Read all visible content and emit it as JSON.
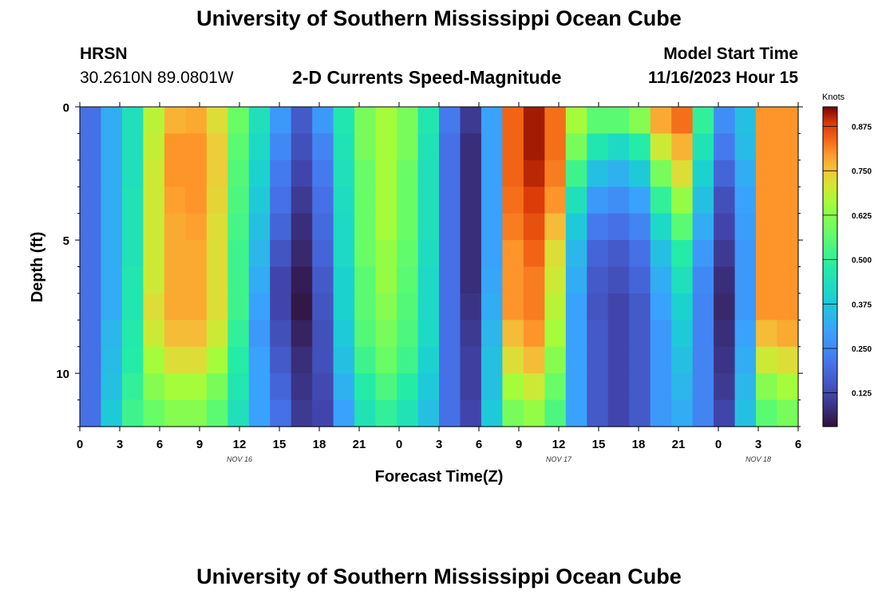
{
  "header": {
    "title": "University of Southern Mississippi Ocean Cube",
    "station": "HRSN",
    "coordinates": "30.2610N  89.0801W",
    "plot_title": "2-D Currents Speed-Magnitude",
    "model_label": "Model Start Time",
    "model_start": "11/16/2023 Hour 15"
  },
  "footer": {
    "title": "University of Southern Mississippi Ocean Cube"
  },
  "chart_data": {
    "type": "heatmap",
    "title": "2-D Currents Speed-Magnitude",
    "xlabel": "Forecast Time(Z)",
    "ylabel": "Depth (ft)",
    "x_tick_labels": [
      "0",
      "3",
      "6",
      "9",
      "12",
      "15",
      "18",
      "21",
      "0",
      "3",
      "6",
      "9",
      "12",
      "15",
      "18",
      "21",
      "0",
      "3",
      "6"
    ],
    "x_range_hours": [
      0,
      54
    ],
    "date_labels": [
      {
        "hour": 12,
        "label": "NOV 16"
      },
      {
        "hour": 36,
        "label": "NOV 17"
      },
      {
        "hour": 51,
        "label": "NOV 18"
      }
    ],
    "y_range_ft": [
      0,
      12
    ],
    "y_ticks": [
      0,
      5,
      10
    ],
    "colorbar": {
      "label": "Knots",
      "range": [
        0.03,
        0.93
      ],
      "ticks": [
        "0.875",
        "0.750",
        "0.625",
        "0.500",
        "0.375",
        "0.250",
        "0.125"
      ],
      "tick_values": [
        0.875,
        0.75,
        0.625,
        0.5,
        0.375,
        0.25,
        0.125
      ]
    },
    "depth_rows_ft": [
      0.5,
      1.5,
      2.5,
      3.5,
      4.5,
      5.5,
      6.5,
      7.5,
      8.5,
      9.5,
      10.5,
      11.5
    ],
    "speed_knots": [
      [
        0.2,
        0.32,
        0.44,
        0.68,
        0.77,
        0.78,
        0.72,
        0.58,
        0.44,
        0.28,
        0.16,
        0.28,
        0.46,
        0.6,
        0.66,
        0.6,
        0.46,
        0.22,
        0.1,
        0.3,
        0.84,
        0.91,
        0.83,
        0.66,
        0.56,
        0.56,
        0.62,
        0.78,
        0.83,
        0.5,
        0.26,
        0.36,
        0.8,
        0.8
      ],
      [
        0.2,
        0.32,
        0.44,
        0.69,
        0.8,
        0.8,
        0.74,
        0.56,
        0.42,
        0.25,
        0.14,
        0.24,
        0.45,
        0.6,
        0.66,
        0.6,
        0.45,
        0.2,
        0.08,
        0.3,
        0.84,
        0.91,
        0.83,
        0.6,
        0.46,
        0.42,
        0.48,
        0.7,
        0.77,
        0.45,
        0.22,
        0.35,
        0.8,
        0.8
      ],
      [
        0.2,
        0.32,
        0.44,
        0.7,
        0.8,
        0.8,
        0.74,
        0.55,
        0.4,
        0.22,
        0.12,
        0.22,
        0.44,
        0.58,
        0.66,
        0.58,
        0.44,
        0.2,
        0.08,
        0.3,
        0.84,
        0.9,
        0.82,
        0.52,
        0.36,
        0.33,
        0.38,
        0.6,
        0.72,
        0.4,
        0.18,
        0.32,
        0.8,
        0.8
      ],
      [
        0.2,
        0.32,
        0.45,
        0.7,
        0.79,
        0.8,
        0.73,
        0.54,
        0.38,
        0.2,
        0.1,
        0.2,
        0.43,
        0.58,
        0.66,
        0.58,
        0.44,
        0.2,
        0.08,
        0.3,
        0.83,
        0.88,
        0.8,
        0.44,
        0.28,
        0.26,
        0.3,
        0.5,
        0.64,
        0.36,
        0.14,
        0.3,
        0.8,
        0.8
      ],
      [
        0.2,
        0.32,
        0.45,
        0.7,
        0.78,
        0.79,
        0.72,
        0.53,
        0.36,
        0.18,
        0.08,
        0.19,
        0.42,
        0.58,
        0.66,
        0.58,
        0.44,
        0.2,
        0.08,
        0.3,
        0.82,
        0.86,
        0.76,
        0.38,
        0.22,
        0.2,
        0.24,
        0.42,
        0.56,
        0.32,
        0.12,
        0.29,
        0.8,
        0.8
      ],
      [
        0.2,
        0.32,
        0.45,
        0.7,
        0.78,
        0.78,
        0.72,
        0.52,
        0.34,
        0.15,
        0.07,
        0.18,
        0.42,
        0.58,
        0.64,
        0.57,
        0.43,
        0.2,
        0.08,
        0.3,
        0.8,
        0.84,
        0.72,
        0.34,
        0.18,
        0.16,
        0.2,
        0.36,
        0.48,
        0.28,
        0.1,
        0.28,
        0.8,
        0.8
      ],
      [
        0.2,
        0.32,
        0.46,
        0.7,
        0.78,
        0.78,
        0.72,
        0.52,
        0.32,
        0.12,
        0.05,
        0.16,
        0.4,
        0.56,
        0.64,
        0.56,
        0.42,
        0.2,
        0.08,
        0.31,
        0.8,
        0.82,
        0.7,
        0.32,
        0.16,
        0.14,
        0.18,
        0.32,
        0.44,
        0.25,
        0.08,
        0.28,
        0.8,
        0.8
      ],
      [
        0.2,
        0.32,
        0.46,
        0.72,
        0.78,
        0.78,
        0.72,
        0.52,
        0.3,
        0.12,
        0.04,
        0.15,
        0.4,
        0.56,
        0.62,
        0.55,
        0.42,
        0.2,
        0.09,
        0.32,
        0.8,
        0.82,
        0.68,
        0.3,
        0.15,
        0.12,
        0.16,
        0.3,
        0.4,
        0.24,
        0.07,
        0.28,
        0.8,
        0.8
      ],
      [
        0.2,
        0.34,
        0.47,
        0.7,
        0.76,
        0.76,
        0.7,
        0.5,
        0.28,
        0.14,
        0.06,
        0.14,
        0.38,
        0.55,
        0.6,
        0.54,
        0.42,
        0.2,
        0.1,
        0.34,
        0.76,
        0.8,
        0.66,
        0.3,
        0.16,
        0.12,
        0.16,
        0.28,
        0.38,
        0.24,
        0.08,
        0.3,
        0.76,
        0.78
      ],
      [
        0.2,
        0.35,
        0.48,
        0.66,
        0.72,
        0.72,
        0.66,
        0.48,
        0.3,
        0.16,
        0.08,
        0.14,
        0.36,
        0.52,
        0.58,
        0.52,
        0.4,
        0.2,
        0.11,
        0.36,
        0.72,
        0.76,
        0.62,
        0.3,
        0.16,
        0.12,
        0.16,
        0.28,
        0.36,
        0.24,
        0.09,
        0.32,
        0.7,
        0.72
      ],
      [
        0.2,
        0.36,
        0.5,
        0.62,
        0.66,
        0.66,
        0.6,
        0.46,
        0.3,
        0.18,
        0.09,
        0.13,
        0.33,
        0.48,
        0.54,
        0.48,
        0.38,
        0.2,
        0.11,
        0.36,
        0.66,
        0.7,
        0.58,
        0.3,
        0.16,
        0.12,
        0.16,
        0.28,
        0.34,
        0.24,
        0.1,
        0.34,
        0.62,
        0.66
      ],
      [
        0.2,
        0.38,
        0.52,
        0.58,
        0.62,
        0.62,
        0.56,
        0.44,
        0.3,
        0.2,
        0.1,
        0.12,
        0.3,
        0.45,
        0.5,
        0.45,
        0.36,
        0.2,
        0.12,
        0.38,
        0.6,
        0.64,
        0.54,
        0.3,
        0.16,
        0.12,
        0.16,
        0.28,
        0.32,
        0.24,
        0.12,
        0.36,
        0.56,
        0.6
      ]
    ]
  }
}
